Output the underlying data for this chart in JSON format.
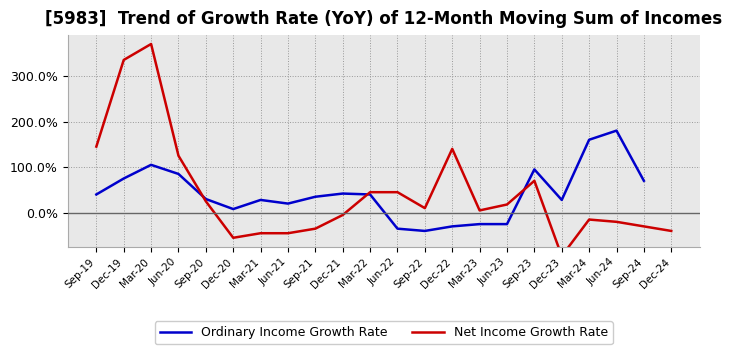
{
  "title": "[5983]  Trend of Growth Rate (YoY) of 12-Month Moving Sum of Incomes",
  "x_labels": [
    "Sep-19",
    "Dec-19",
    "Mar-20",
    "Jun-20",
    "Sep-20",
    "Dec-20",
    "Mar-21",
    "Jun-21",
    "Sep-21",
    "Dec-21",
    "Mar-22",
    "Jun-22",
    "Sep-22",
    "Dec-22",
    "Mar-23",
    "Jun-23",
    "Sep-23",
    "Dec-23",
    "Mar-24",
    "Jun-24",
    "Sep-24",
    "Dec-24"
  ],
  "ordinary_income": [
    40,
    75,
    105,
    85,
    30,
    8,
    28,
    20,
    35,
    42,
    40,
    -35,
    -40,
    -30,
    -25,
    -25,
    95,
    28,
    160,
    180,
    70,
    null
  ],
  "net_income": [
    145,
    335,
    370,
    125,
    25,
    -55,
    -45,
    -45,
    -35,
    -5,
    45,
    45,
    10,
    140,
    5,
    18,
    70,
    -95,
    -15,
    -20,
    -30,
    -40
  ],
  "ordinary_income_color": "#0000cc",
  "net_income_color": "#cc0000",
  "ylim_min": -75,
  "ylim_max": 390,
  "yticks": [
    0,
    100,
    200,
    300
  ],
  "ytick_labels": [
    "0.0%",
    "100.0%",
    "200.0%",
    "300.0%"
  ],
  "legend_ordinary": "Ordinary Income Growth Rate",
  "legend_net": "Net Income Growth Rate",
  "background_color": "#ffffff",
  "plot_background": "#e8e8e8",
  "grid_color": "#999999",
  "zero_line_color": "#666666",
  "line_width": 1.8,
  "title_fontsize": 12
}
